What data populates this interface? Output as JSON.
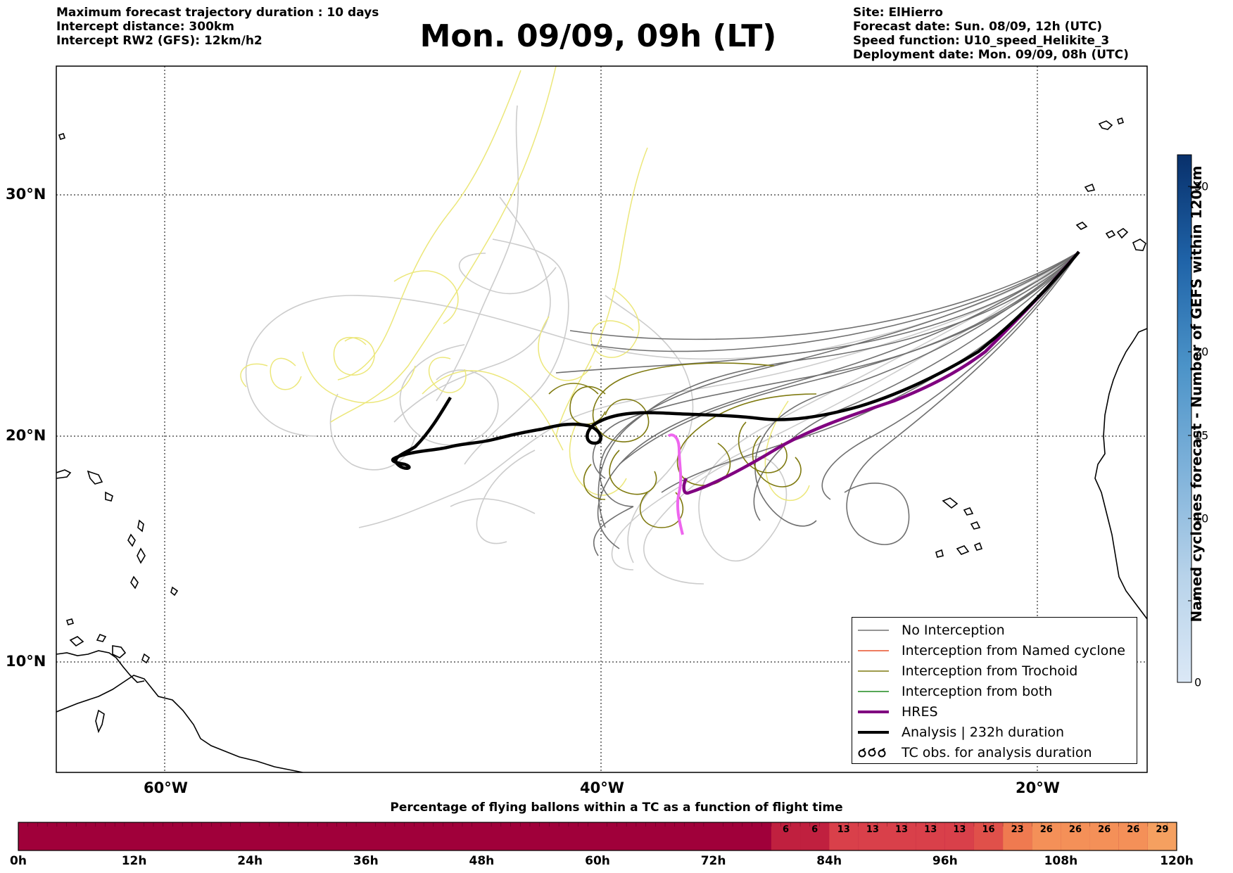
{
  "header": {
    "left_lines": [
      "Maximum forecast trajectory duration : 10 days",
      "Intercept distance: 300km",
      "Intercept RW2 (GFS):  12km/h2"
    ],
    "title": "Mon. 09/09, 09h (LT)",
    "right_lines": [
      "Site: ElHierro",
      "Forecast date: Sun. 08/09, 12h (UTC)",
      "Speed function: U10_speed_Helikite_3",
      "Deployment date: Mon. 09/09, 08h (UTC)"
    ]
  },
  "map": {
    "lat_labels": [
      "30°N",
      "20°N",
      "10°N"
    ],
    "lon_labels": [
      "60°W",
      "40°W",
      "20°W"
    ],
    "legend": [
      {
        "label": "No Interception",
        "color": "#707070",
        "style": "thin"
      },
      {
        "label": "Interception from Named cyclone",
        "color": "#e8502a",
        "style": "thin"
      },
      {
        "label": "Interception from Trochoid",
        "color": "#7f7a10",
        "style": "thin"
      },
      {
        "label": "Interception from both",
        "color": "#1f8a1f",
        "style": "thin"
      },
      {
        "label": "HRES",
        "color": "#800080",
        "style": "thick"
      },
      {
        "label": "Analysis | 232h duration",
        "color": "#000000",
        "style": "thick"
      },
      {
        "label": "TC obs. for analysis duration",
        "color": "#000000",
        "style": "symbol"
      }
    ]
  },
  "colorbar": {
    "label": "Named cyclones forecast - Number of GEFS within 120km",
    "ticks": [
      "0",
      "5",
      "10",
      "15",
      "20",
      "30"
    ]
  },
  "flight_bar": {
    "title": "Percentage of flying ballons within a TC as a function of flight time",
    "ticks": [
      "0h",
      "12h",
      "24h",
      "36h",
      "48h",
      "60h",
      "72h",
      "84h",
      "96h",
      "108h",
      "120h"
    ],
    "values": [
      "6",
      "6",
      "13",
      "13",
      "13",
      "13",
      "13",
      "16",
      "23",
      "26",
      "26",
      "26",
      "26",
      "29"
    ],
    "value_colors": [
      "#c0203f",
      "#c0203f",
      "#d9404a",
      "#d9404a",
      "#d9404a",
      "#d9404a",
      "#d9404a",
      "#e0504a",
      "#ef7a50",
      "#f49058",
      "#f49058",
      "#f49058",
      "#f49058",
      "#f5a060"
    ],
    "base_color": "#a0003a"
  }
}
